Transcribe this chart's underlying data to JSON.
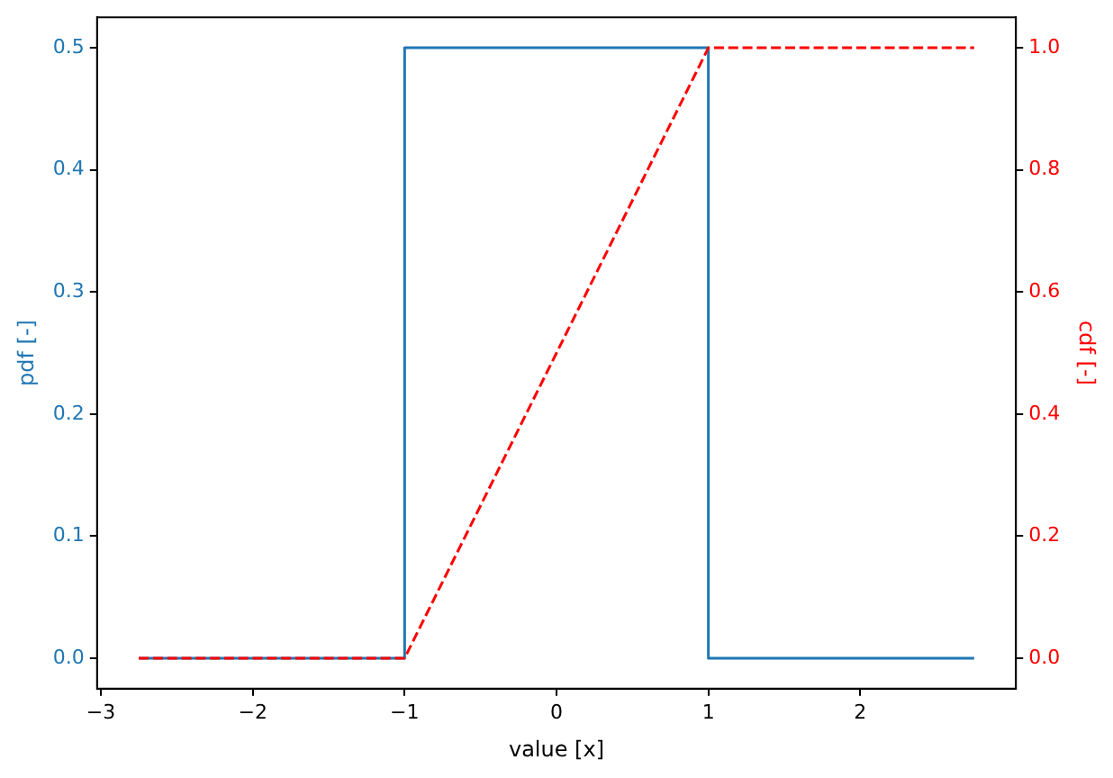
{
  "chart_data": {
    "type": "line",
    "xlabel": "value [x]",
    "ylabel": "pdf [-]",
    "y2label": "cdf [-]",
    "series": [
      {
        "color": "#1f77b4",
        "x": [
          -2.75,
          -1,
          -1,
          1,
          1,
          2.75
        ],
        "values": [
          0,
          0,
          0.5,
          0.5,
          0,
          0
        ],
        "line_style": "solid"
      },
      {
        "color": "#ff0000",
        "x": [
          -2.75,
          -1,
          1,
          2.75
        ],
        "values": [
          0,
          0,
          1,
          1
        ],
        "axis": "y2",
        "line_style": "dashed"
      }
    ],
    "xlim": [
      -3.025,
      3.025
    ],
    "xticks": [
      {
        "value": -3,
        "label": "−3"
      },
      {
        "value": -2,
        "label": "−2"
      },
      {
        "value": -1,
        "label": "−1"
      },
      0,
      1,
      2
    ],
    "ylim": [
      -0.025,
      0.525
    ],
    "yticks": [
      {
        "value": 0,
        "label": "0.0"
      },
      0.1,
      0.2,
      0.3,
      0.4,
      0.5
    ],
    "y2lim": [
      -0.05,
      1.05
    ],
    "y2ticks": [
      {
        "value": 0,
        "label": "0.0"
      },
      0.2,
      0.4,
      0.6,
      0.8,
      {
        "value": 1,
        "label": "1.0"
      }
    ],
    "grid": false,
    "legend": false,
    "marker": "none"
  }
}
